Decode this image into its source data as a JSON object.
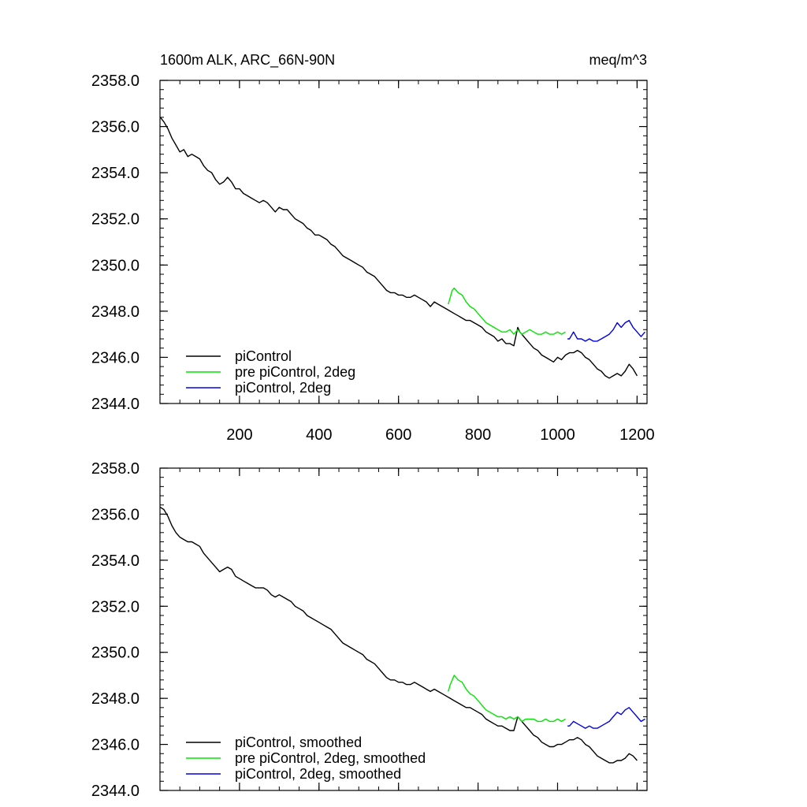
{
  "chart_data": [
    {
      "type": "line",
      "title_left": "1600m ALK, ARC_66N-90N",
      "title_right": "meq/m^3",
      "xlim": [
        0,
        1225
      ],
      "ylim": [
        2344.0,
        2358.0
      ],
      "xticks": [
        200,
        400,
        600,
        800,
        1000,
        1200
      ],
      "xtick_labels": [
        "200",
        "400",
        "600",
        "800",
        "1000",
        "1200"
      ],
      "yticks": [
        2344,
        2346,
        2348,
        2350,
        2352,
        2354,
        2356,
        2358
      ],
      "ytick_labels": [
        "2344.0",
        "2346.0",
        "2348.0",
        "2350.0",
        "2352.0",
        "2354.0",
        "2356.0",
        "2358.0"
      ],
      "grid": false,
      "legend_position": "bottom-left",
      "series": [
        {
          "name": "piControl",
          "color": "#000000",
          "x": [
            1,
            10,
            20,
            30,
            40,
            50,
            60,
            70,
            80,
            90,
            100,
            110,
            120,
            130,
            140,
            150,
            160,
            170,
            180,
            190,
            200,
            210,
            220,
            230,
            240,
            250,
            260,
            270,
            280,
            290,
            300,
            310,
            320,
            330,
            340,
            350,
            360,
            370,
            380,
            390,
            400,
            410,
            420,
            430,
            440,
            450,
            460,
            470,
            480,
            490,
            500,
            510,
            520,
            530,
            540,
            550,
            560,
            570,
            580,
            590,
            600,
            610,
            620,
            630,
            640,
            650,
            660,
            670,
            680,
            690,
            700,
            710,
            720,
            730,
            740,
            750,
            760,
            770,
            780,
            790,
            800,
            810,
            820,
            830,
            840,
            850,
            860,
            870,
            880,
            890,
            900,
            905,
            910,
            920,
            930,
            940,
            950,
            960,
            970,
            980,
            990,
            1000,
            1010,
            1020,
            1030,
            1040,
            1050,
            1060,
            1070,
            1080,
            1090,
            1100,
            1110,
            1120,
            1130,
            1140,
            1150,
            1160,
            1170,
            1180,
            1190,
            1200
          ],
          "values": [
            2356.4,
            2356.2,
            2355.9,
            2355.5,
            2355.2,
            2354.9,
            2355.0,
            2354.7,
            2354.8,
            2354.7,
            2354.6,
            2354.3,
            2354.1,
            2354.0,
            2353.7,
            2353.5,
            2353.6,
            2353.8,
            2353.6,
            2353.3,
            2353.3,
            2353.1,
            2353.0,
            2352.9,
            2352.8,
            2352.7,
            2352.8,
            2352.7,
            2352.5,
            2352.3,
            2352.5,
            2352.4,
            2352.4,
            2352.2,
            2352.0,
            2351.9,
            2351.8,
            2351.6,
            2351.5,
            2351.3,
            2351.3,
            2351.2,
            2351.1,
            2350.9,
            2350.8,
            2350.6,
            2350.4,
            2350.3,
            2350.2,
            2350.1,
            2350.0,
            2349.9,
            2349.7,
            2349.6,
            2349.5,
            2349.3,
            2349.1,
            2348.9,
            2348.8,
            2348.8,
            2348.7,
            2348.7,
            2348.6,
            2348.6,
            2348.7,
            2348.6,
            2348.5,
            2348.4,
            2348.2,
            2348.4,
            2348.3,
            2348.2,
            2348.1,
            2348.0,
            2347.9,
            2347.8,
            2347.7,
            2347.6,
            2347.6,
            2347.5,
            2347.4,
            2347.3,
            2347.1,
            2347.0,
            2346.9,
            2346.7,
            2346.8,
            2346.6,
            2346.6,
            2346.5,
            2347.3,
            2347.1,
            2347.0,
            2346.8,
            2346.6,
            2346.4,
            2346.3,
            2346.1,
            2346.0,
            2345.9,
            2345.8,
            2346.0,
            2345.9,
            2346.1,
            2346.2,
            2346.2,
            2346.3,
            2346.2,
            2346.0,
            2345.9,
            2345.7,
            2345.5,
            2345.4,
            2345.2,
            2345.1,
            2345.2,
            2345.3,
            2345.2,
            2345.4,
            2345.7,
            2345.5,
            2345.2
          ]
        },
        {
          "name": "pre piControl, 2deg",
          "color": "#00e600",
          "x": [
            725,
            730,
            735,
            740,
            745,
            750,
            760,
            770,
            780,
            790,
            800,
            810,
            820,
            830,
            840,
            850,
            860,
            870,
            880,
            890,
            900,
            910,
            920,
            930,
            940,
            950,
            960,
            970,
            980,
            990,
            1000,
            1010,
            1020
          ],
          "values": [
            2348.3,
            2348.6,
            2348.9,
            2349.0,
            2348.9,
            2348.8,
            2348.7,
            2348.4,
            2348.2,
            2348.1,
            2347.9,
            2347.7,
            2347.5,
            2347.4,
            2347.3,
            2347.2,
            2347.1,
            2347.1,
            2347.2,
            2347.0,
            2347.2,
            2347.0,
            2347.1,
            2347.2,
            2347.1,
            2347.0,
            2347.0,
            2347.1,
            2347.0,
            2347.0,
            2347.1,
            2347.0,
            2347.1
          ]
        },
        {
          "name": "piControl, 2deg",
          "color": "#0000e6",
          "x": [
            1025,
            1030,
            1040,
            1050,
            1060,
            1070,
            1080,
            1090,
            1100,
            1110,
            1120,
            1130,
            1140,
            1150,
            1160,
            1170,
            1180,
            1190,
            1200,
            1210,
            1220
          ],
          "values": [
            2346.8,
            2346.8,
            2347.1,
            2346.8,
            2346.8,
            2346.7,
            2346.8,
            2346.7,
            2346.7,
            2346.8,
            2346.9,
            2347.0,
            2347.2,
            2347.5,
            2347.3,
            2347.5,
            2347.6,
            2347.3,
            2347.1,
            2346.9,
            2347.1
          ]
        }
      ]
    },
    {
      "type": "line",
      "xlim": [
        0,
        1225
      ],
      "ylim": [
        2344.0,
        2358.0
      ],
      "xticks": [
        200,
        400,
        600,
        800,
        1000,
        1200
      ],
      "yticks": [
        2344,
        2346,
        2348,
        2350,
        2352,
        2354,
        2356,
        2358
      ],
      "ytick_labels": [
        "2344.0",
        "2346.0",
        "2348.0",
        "2350.0",
        "2352.0",
        "2354.0",
        "2356.0",
        "2358.0"
      ],
      "grid": false,
      "legend_position": "bottom-left",
      "series": [
        {
          "name": "piControl, smoothed",
          "color": "#000000",
          "x": [
            1,
            10,
            20,
            30,
            40,
            50,
            60,
            70,
            80,
            90,
            100,
            110,
            120,
            130,
            140,
            150,
            160,
            170,
            180,
            190,
            200,
            210,
            220,
            230,
            240,
            250,
            260,
            270,
            280,
            290,
            300,
            310,
            320,
            330,
            340,
            350,
            360,
            370,
            380,
            390,
            400,
            410,
            420,
            430,
            440,
            450,
            460,
            470,
            480,
            490,
            500,
            510,
            520,
            530,
            540,
            550,
            560,
            570,
            580,
            590,
            600,
            610,
            620,
            630,
            640,
            650,
            660,
            670,
            680,
            690,
            700,
            710,
            720,
            730,
            740,
            750,
            760,
            770,
            780,
            790,
            800,
            810,
            820,
            830,
            840,
            850,
            860,
            870,
            880,
            890,
            900,
            905,
            910,
            920,
            930,
            940,
            950,
            960,
            970,
            980,
            990,
            1000,
            1010,
            1020,
            1030,
            1040,
            1050,
            1060,
            1070,
            1080,
            1090,
            1100,
            1110,
            1120,
            1130,
            1140,
            1150,
            1160,
            1170,
            1180,
            1190,
            1200
          ],
          "values": [
            2356.3,
            2356.2,
            2355.9,
            2355.5,
            2355.2,
            2355.0,
            2354.9,
            2354.8,
            2354.8,
            2354.7,
            2354.6,
            2354.3,
            2354.1,
            2353.9,
            2353.7,
            2353.5,
            2353.6,
            2353.7,
            2353.6,
            2353.3,
            2353.2,
            2353.1,
            2353.0,
            2352.9,
            2352.8,
            2352.8,
            2352.8,
            2352.7,
            2352.5,
            2352.4,
            2352.5,
            2352.4,
            2352.3,
            2352.2,
            2352.0,
            2351.9,
            2351.8,
            2351.6,
            2351.5,
            2351.4,
            2351.3,
            2351.2,
            2351.1,
            2351.0,
            2350.8,
            2350.6,
            2350.4,
            2350.3,
            2350.2,
            2350.1,
            2350.0,
            2349.9,
            2349.7,
            2349.6,
            2349.5,
            2349.3,
            2349.1,
            2348.9,
            2348.8,
            2348.8,
            2348.7,
            2348.7,
            2348.6,
            2348.6,
            2348.7,
            2348.6,
            2348.5,
            2348.4,
            2348.3,
            2348.4,
            2348.3,
            2348.2,
            2348.1,
            2348.0,
            2347.9,
            2347.8,
            2347.7,
            2347.6,
            2347.6,
            2347.5,
            2347.4,
            2347.3,
            2347.1,
            2347.0,
            2346.9,
            2346.8,
            2346.8,
            2346.7,
            2346.6,
            2346.6,
            2347.2,
            2347.1,
            2347.0,
            2346.8,
            2346.6,
            2346.4,
            2346.3,
            2346.1,
            2346.0,
            2345.9,
            2345.9,
            2346.0,
            2346.0,
            2346.1,
            2346.2,
            2346.2,
            2346.3,
            2346.2,
            2346.0,
            2345.9,
            2345.7,
            2345.5,
            2345.4,
            2345.3,
            2345.2,
            2345.2,
            2345.3,
            2345.3,
            2345.4,
            2345.6,
            2345.5,
            2345.3
          ]
        },
        {
          "name": "pre piControl, 2deg, smoothed",
          "color": "#00e600",
          "x": [
            725,
            730,
            735,
            740,
            745,
            750,
            760,
            770,
            780,
            790,
            800,
            810,
            820,
            830,
            840,
            850,
            860,
            870,
            880,
            890,
            900,
            910,
            920,
            930,
            940,
            950,
            960,
            970,
            980,
            990,
            1000,
            1010,
            1020
          ],
          "values": [
            2348.3,
            2348.6,
            2348.8,
            2349.0,
            2348.9,
            2348.8,
            2348.7,
            2348.4,
            2348.2,
            2348.1,
            2347.9,
            2347.7,
            2347.5,
            2347.4,
            2347.3,
            2347.2,
            2347.2,
            2347.1,
            2347.2,
            2347.1,
            2347.2,
            2347.0,
            2347.1,
            2347.1,
            2347.1,
            2347.0,
            2347.0,
            2347.1,
            2347.0,
            2347.0,
            2347.1,
            2347.0,
            2347.1
          ]
        },
        {
          "name": "piControl, 2deg, smoothed",
          "color": "#0000e6",
          "x": [
            1025,
            1030,
            1040,
            1050,
            1060,
            1070,
            1080,
            1090,
            1100,
            1110,
            1120,
            1130,
            1140,
            1150,
            1160,
            1170,
            1180,
            1190,
            1200,
            1210,
            1220
          ],
          "values": [
            2346.8,
            2346.8,
            2347.0,
            2346.9,
            2346.8,
            2346.7,
            2346.8,
            2346.7,
            2346.7,
            2346.8,
            2346.9,
            2347.0,
            2347.2,
            2347.4,
            2347.3,
            2347.5,
            2347.6,
            2347.4,
            2347.2,
            2347.0,
            2347.1
          ]
        }
      ]
    }
  ]
}
